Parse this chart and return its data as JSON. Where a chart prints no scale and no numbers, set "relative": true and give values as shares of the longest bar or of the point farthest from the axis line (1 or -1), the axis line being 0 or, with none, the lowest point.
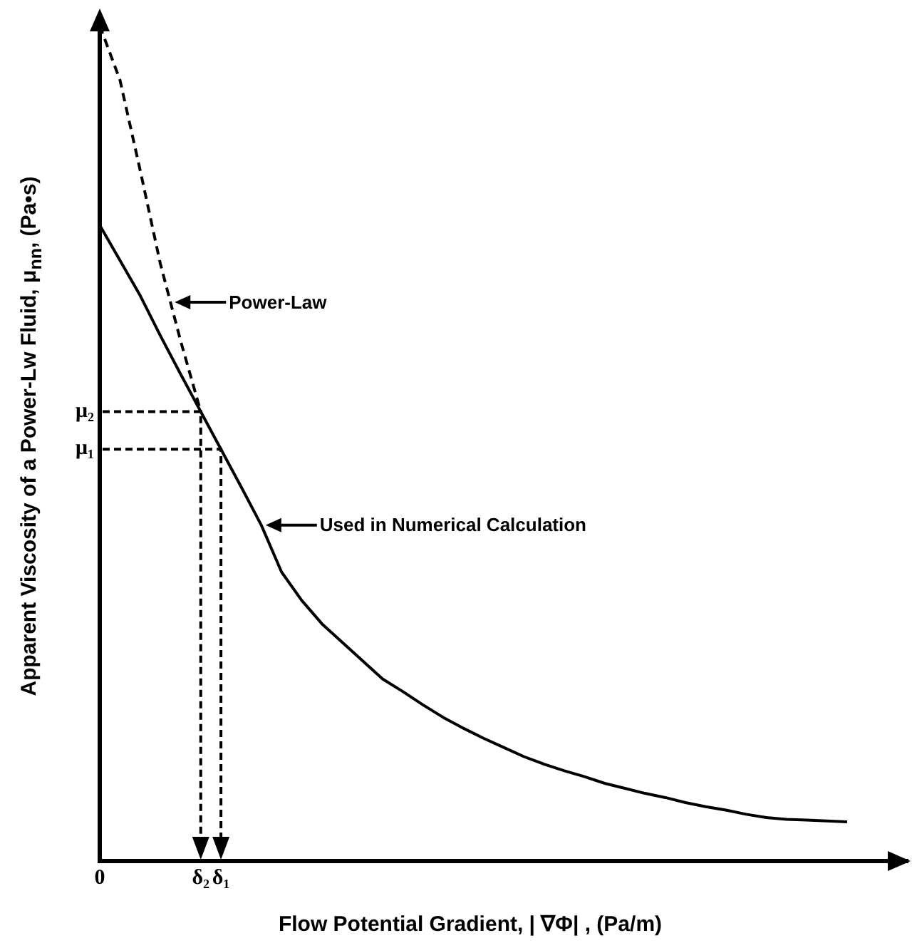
{
  "chart_data": {
    "type": "line",
    "relative": true,
    "xlabel": "Flow Potential Gradient, | ∇Φ| , (Pa/m)",
    "ylabel": "Apparent Viscosity of a Power-Lw Fluid, μ$_{nn}$, (Pa•s)",
    "categories": [
      "0",
      null,
      null,
      null,
      null,
      "δ₂",
      "δ₁",
      null,
      null,
      null,
      null,
      null,
      null,
      null,
      null,
      null,
      null,
      null,
      null,
      null,
      null,
      null,
      null,
      null,
      null,
      null,
      null,
      null,
      null,
      null,
      null,
      null,
      null,
      null,
      null,
      null,
      null,
      null,
      null,
      null,
      null
    ],
    "grid": false,
    "legend": false,
    "marker": "none",
    "series": [
      {
        "color": "#000000",
        "line_style": "solid",
        "values": [
          0.761,
          0.719,
          0.677,
          0.629,
          0.583,
          0.538,
          0.493,
          0.448,
          0.402,
          0.346,
          0.312,
          0.284,
          0.262,
          0.24,
          0.218,
          0.203,
          0.187,
          0.172,
          0.159,
          0.147,
          0.136,
          0.125,
          0.116,
          0.108,
          0.101,
          0.093,
          0.087,
          0.081,
          0.076,
          0.07,
          0.065,
          0.061,
          0.056,
          0.052,
          0.05,
          0.049,
          0.048,
          0.047,
          null,
          null,
          null
        ]
      },
      {
        "color": "#000000",
        "line_style": "dashed",
        "values": [
          1,
          0.935,
          0.827,
          0.715,
          0.623,
          0.538,
          null,
          null,
          null,
          null,
          null,
          null,
          null,
          null,
          null,
          null,
          null,
          null,
          null,
          null,
          null,
          null,
          null,
          null,
          null,
          null,
          null,
          null,
          null,
          null,
          null,
          null,
          null,
          null,
          null,
          null,
          null,
          null,
          null,
          null,
          null
        ]
      }
    ],
    "annotations": [
      "Power-Law",
      "Used in Numerical Calculation",
      "μ₂",
      "μ₁"
    ]
  }
}
